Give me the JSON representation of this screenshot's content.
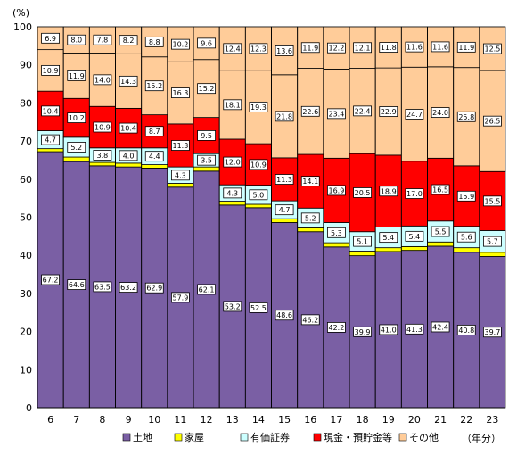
{
  "chart_data": {
    "type": "bar",
    "stacked": true,
    "percent_stacked": true,
    "title": "",
    "xlabel": "（年分）",
    "ylabel": "(%)",
    "ylim": [
      0,
      100
    ],
    "yticks": [
      0,
      10,
      20,
      30,
      40,
      50,
      60,
      70,
      80,
      90,
      100
    ],
    "categories": [
      "6",
      "7",
      "8",
      "9",
      "10",
      "11",
      "12",
      "13",
      "14",
      "15",
      "16",
      "17",
      "18",
      "19",
      "20",
      "21",
      "22",
      "23"
    ],
    "legend_position": "bottom",
    "series": [
      {
        "name": "土地",
        "color": "#7a5fa4",
        "values": [
          67.2,
          64.6,
          63.5,
          63.2,
          62.9,
          57.9,
          62.1,
          53.2,
          52.5,
          48.6,
          46.2,
          42.2,
          39.9,
          41.0,
          41.3,
          42.4,
          40.8,
          39.7
        ]
      },
      {
        "name": "家屋",
        "color": "#ffff00",
        "values": [
          0.8,
          1.2,
          0.9,
          1.0,
          0.9,
          1.0,
          1.1,
          1.0,
          0.9,
          1.0,
          1.0,
          1.1,
          1.2,
          1.0,
          1.0,
          1.1,
          1.2,
          1.1
        ],
        "labels": [
          "",
          "",
          "",
          "",
          "",
          "",
          "",
          "",
          "",
          "",
          "",
          "",
          "",
          "",
          "",
          "",
          "",
          ""
        ]
      },
      {
        "name": "有価証券",
        "color": "#ccffff",
        "values": [
          4.7,
          5.2,
          3.8,
          4.0,
          4.4,
          4.3,
          3.5,
          4.3,
          5.0,
          4.7,
          5.2,
          5.3,
          5.1,
          5.4,
          5.4,
          5.5,
          5.6,
          5.7
        ]
      },
      {
        "name": "現金・預貯金等",
        "color": "#ff0000",
        "values": [
          10.4,
          10.2,
          10.9,
          10.4,
          8.7,
          11.3,
          9.5,
          12.0,
          10.9,
          11.3,
          14.1,
          16.9,
          20.5,
          18.9,
          17.0,
          16.5,
          15.9,
          15.5
        ]
      },
      {
        "name": "その他",
        "color": "#ffcc99",
        "values": [
          10.9,
          11.9,
          14.0,
          14.3,
          15.2,
          16.3,
          15.2,
          18.1,
          19.3,
          21.8,
          22.6,
          23.4,
          22.4,
          22.9,
          24.7,
          24.0,
          25.8,
          26.5
        ]
      }
    ],
    "top_labels": [
      6.9,
      8.0,
      7.8,
      8.2,
      8.8,
      10.2,
      9.6,
      12.4,
      12.3,
      13.6,
      11.9,
      12.2,
      12.1,
      11.8,
      11.6,
      11.6,
      11.9,
      12.5
    ],
    "colors": {
      "land": "#7a5fa4",
      "house": "#ffff00",
      "securities": "#ccffff",
      "cash": "#ff0000",
      "other": "#ffcc99"
    }
  }
}
